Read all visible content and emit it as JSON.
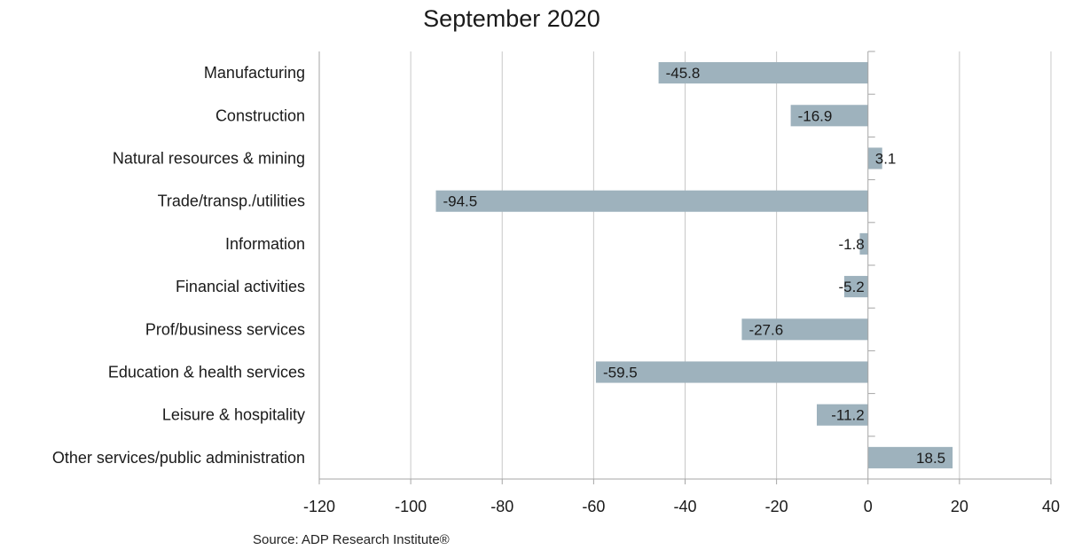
{
  "chart_data": {
    "type": "bar",
    "orientation": "horizontal",
    "title": "September 2020",
    "categories": [
      "Manufacturing",
      "Construction",
      "Natural resources & mining",
      "Trade/transp./utilities",
      "Information",
      "Financial activities",
      "Prof/business services",
      "Education & health services",
      "Leisure & hospitality",
      "Other services/public administration"
    ],
    "values": [
      -45.8,
      -16.9,
      3.1,
      -94.5,
      -1.8,
      -5.2,
      -27.6,
      -59.5,
      -11.2,
      18.5
    ],
    "data_labels": [
      "-45.8",
      "-16.9",
      "3.1",
      "-94.5",
      "-1.8",
      "-5.2",
      "-27.6",
      "-59.5",
      "-11.2",
      "18.5"
    ],
    "xlim": [
      -120,
      40
    ],
    "xticks": [
      -120,
      -100,
      -80,
      -60,
      -40,
      -20,
      0,
      20,
      40
    ],
    "xtick_labels": [
      "-120",
      "-100",
      "-80",
      "-60",
      "-40",
      "-20",
      "0",
      "20",
      "40"
    ],
    "xlabel": "",
    "ylabel": "",
    "grid": "vertical",
    "legend": "none",
    "bar_color": "#9eb2bd",
    "gridline_color": "#c8c8c8",
    "axis_color": "#a6a6a6"
  },
  "source": "Source: ADP Research Institute®"
}
